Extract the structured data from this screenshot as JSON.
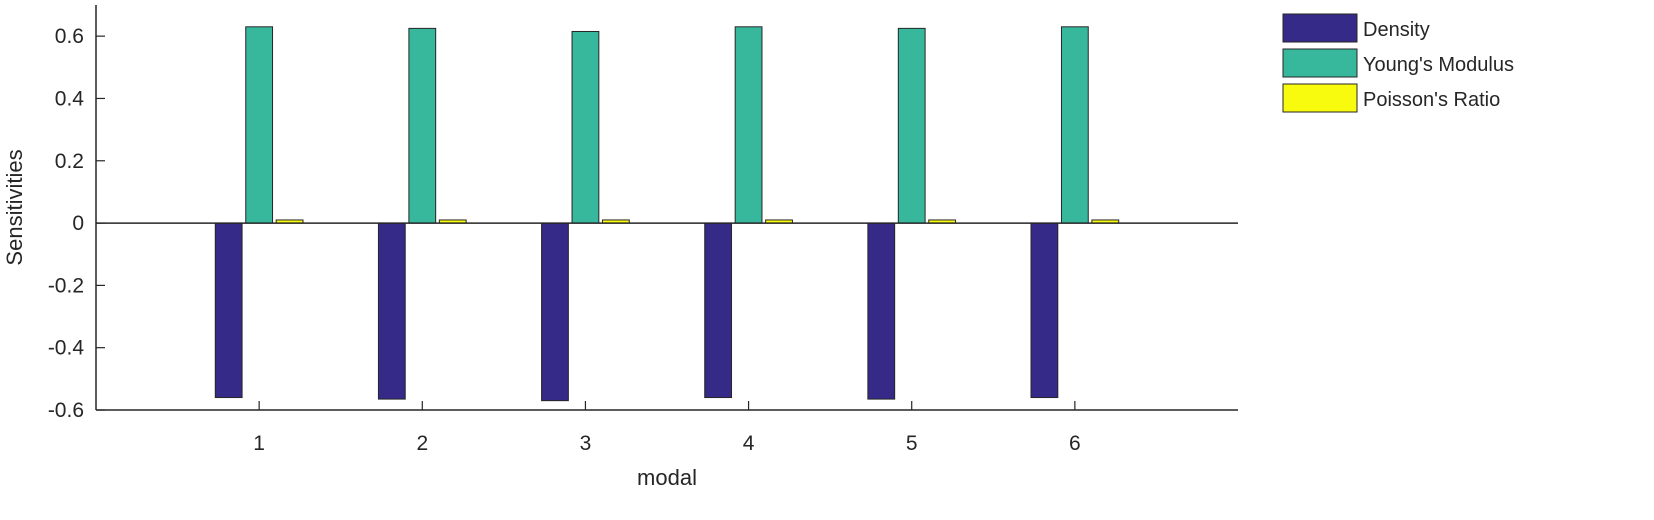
{
  "chart_data": {
    "type": "bar",
    "title": "",
    "xlabel": "modal",
    "ylabel": "Sensitivities",
    "categories": [
      "1",
      "2",
      "3",
      "4",
      "5",
      "6"
    ],
    "xlim": [
      0,
      7
    ],
    "ylim": [
      -0.6,
      0.7
    ],
    "yticks": [
      -0.6,
      -0.4,
      -0.2,
      0,
      0.2,
      0.4,
      0.6
    ],
    "ytick_labels": [
      "-0.6",
      "-0.4",
      "-0.2",
      "0",
      "0.2",
      "0.4",
      "0.6"
    ],
    "grid": false,
    "legend_position": "outside-top-right",
    "series": [
      {
        "name": "Density",
        "color": "#352a87",
        "values": [
          -0.56,
          -0.565,
          -0.57,
          -0.56,
          -0.565,
          -0.56
        ]
      },
      {
        "name": "Young's Modulus",
        "color": "#37b89d",
        "values": [
          0.63,
          0.625,
          0.615,
          0.63,
          0.625,
          0.63
        ]
      },
      {
        "name": "Poisson's Ratio",
        "color": "#f9fb0e",
        "values": [
          0.01,
          0.01,
          0.01,
          0.01,
          0.01,
          0.01
        ]
      }
    ]
  }
}
